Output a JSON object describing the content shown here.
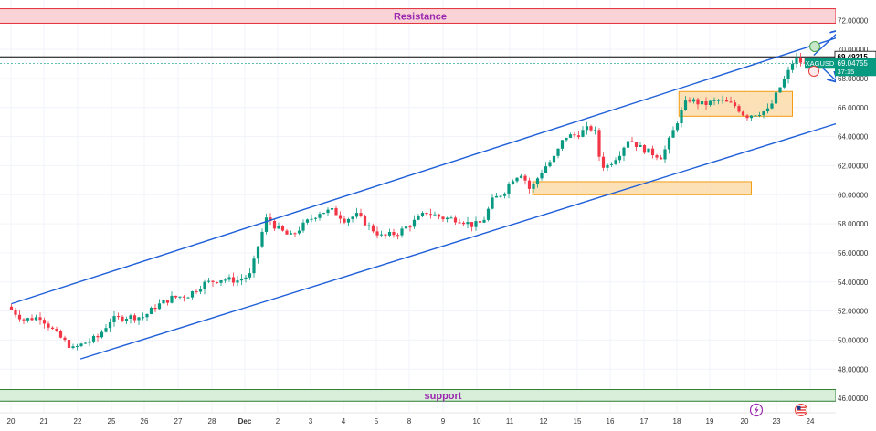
{
  "chart_data": {
    "type": "candlestick",
    "symbol": "XAGUSD",
    "y_axis": {
      "ticks": [
        "72.00000",
        "70.00000",
        "68.00000",
        "66.00000",
        "64.00000",
        "62.00000",
        "60.00000",
        "58.00000",
        "56.00000",
        "54.00000",
        "52.00000",
        "50.00000",
        "48.00000",
        "46.00000"
      ],
      "range": [
        45.0,
        73.4
      ]
    },
    "x_axis": {
      "ticks": [
        "20",
        "21",
        "22",
        "25",
        "26",
        "27",
        "28",
        "Dec",
        "2",
        "3",
        "4",
        "5",
        "8",
        "9",
        "10",
        "11",
        "12",
        "15",
        "16",
        "17",
        "18",
        "19",
        "20",
        "23",
        "24"
      ]
    },
    "price_labels": {
      "line_price": "69.49215",
      "symbol_tag": "XAGUSD",
      "last_price": "69.04755",
      "countdown": "37:15"
    },
    "horizontal_line": 69.492,
    "zones": [
      {
        "name": "Resistance",
        "label": "Resistance",
        "from": 71.8,
        "to": 72.8
      },
      {
        "name": "support",
        "label": "support",
        "from": 45.8,
        "to": 46.6
      }
    ],
    "channel": {
      "upper": [
        [
          0,
          52.5
        ],
        [
          52.8,
          71.75
        ]
      ],
      "lower": [
        [
          4.2,
          48.7
        ],
        [
          53.6,
          66.1
        ]
      ]
    },
    "boxes": [
      {
        "name": "consolidation",
        "x": [
          40.6,
          47.5
        ],
        "y": [
          65.4,
          67.1
        ]
      },
      {
        "name": "demand",
        "x": [
          31.7,
          45.0
        ],
        "y": [
          60.0,
          60.9
        ]
      }
    ],
    "projections": [
      {
        "name": "up-arrow",
        "from": [
          48.8,
          69.6
        ],
        "to": [
          50.4,
          71.3
        ]
      },
      {
        "name": "down-arrow",
        "from": [
          48.8,
          69.3
        ],
        "to": [
          50.2,
          67.8
        ]
      }
    ],
    "candle_anchors": [
      [
        0,
        52.3
      ],
      [
        1,
        51.4
      ],
      [
        2,
        51.6
      ],
      [
        3,
        50.4
      ],
      [
        4,
        49.4
      ],
      [
        4.7,
        49.8
      ],
      [
        5.5,
        50.2
      ],
      [
        6.3,
        51.4
      ],
      [
        7.2,
        51.6
      ],
      [
        8.3,
        51.6
      ],
      [
        9,
        52.3
      ],
      [
        10,
        52.9
      ],
      [
        11,
        53.1
      ],
      [
        12,
        53.9
      ],
      [
        13,
        54.2
      ],
      [
        14,
        54.1
      ],
      [
        14.8,
        54.5
      ],
      [
        15.3,
        56.7
      ],
      [
        15.8,
        58.5
      ],
      [
        16.3,
        57.8
      ],
      [
        17.2,
        57.1
      ],
      [
        18.3,
        58.2
      ],
      [
        19,
        58.8
      ],
      [
        19.8,
        58.9
      ],
      [
        20.5,
        58.3
      ],
      [
        21.3,
        58.6
      ],
      [
        22,
        57.8
      ],
      [
        22.8,
        57.1
      ],
      [
        23.8,
        57.4
      ],
      [
        24.8,
        58.2
      ],
      [
        25.5,
        58.8
      ],
      [
        26.5,
        58.4
      ],
      [
        27.5,
        58.3
      ],
      [
        28.3,
        57.9
      ],
      [
        28.9,
        58.1
      ],
      [
        29.5,
        59.6
      ],
      [
        30.2,
        60.2
      ],
      [
        30.8,
        61.2
      ],
      [
        31.3,
        61.5
      ],
      [
        31.8,
        60.3
      ],
      [
        32.6,
        61.8
      ],
      [
        33.3,
        62.6
      ],
      [
        33.9,
        64.0
      ],
      [
        34.6,
        64.1
      ],
      [
        35.2,
        64.5
      ],
      [
        35.7,
        64.6
      ],
      [
        36.1,
        62.0
      ],
      [
        36.5,
        62.0
      ],
      [
        37.2,
        62.8
      ],
      [
        37.8,
        63.9
      ],
      [
        38.4,
        63.3
      ],
      [
        39.1,
        62.9
      ],
      [
        39.8,
        62.6
      ],
      [
        40.4,
        64.1
      ],
      [
        40.9,
        65.5
      ],
      [
        41.4,
        66.6
      ],
      [
        42.3,
        66.2
      ],
      [
        43.3,
        66.5
      ],
      [
        44.3,
        66.1
      ],
      [
        44.9,
        65.4
      ],
      [
        45.5,
        65.6
      ],
      [
        46.3,
        65.8
      ],
      [
        46.9,
        67.2
      ],
      [
        47.4,
        68.2
      ],
      [
        47.8,
        69.2
      ],
      [
        48.1,
        69.4
      ],
      [
        48.3,
        69.05
      ]
    ]
  }
}
